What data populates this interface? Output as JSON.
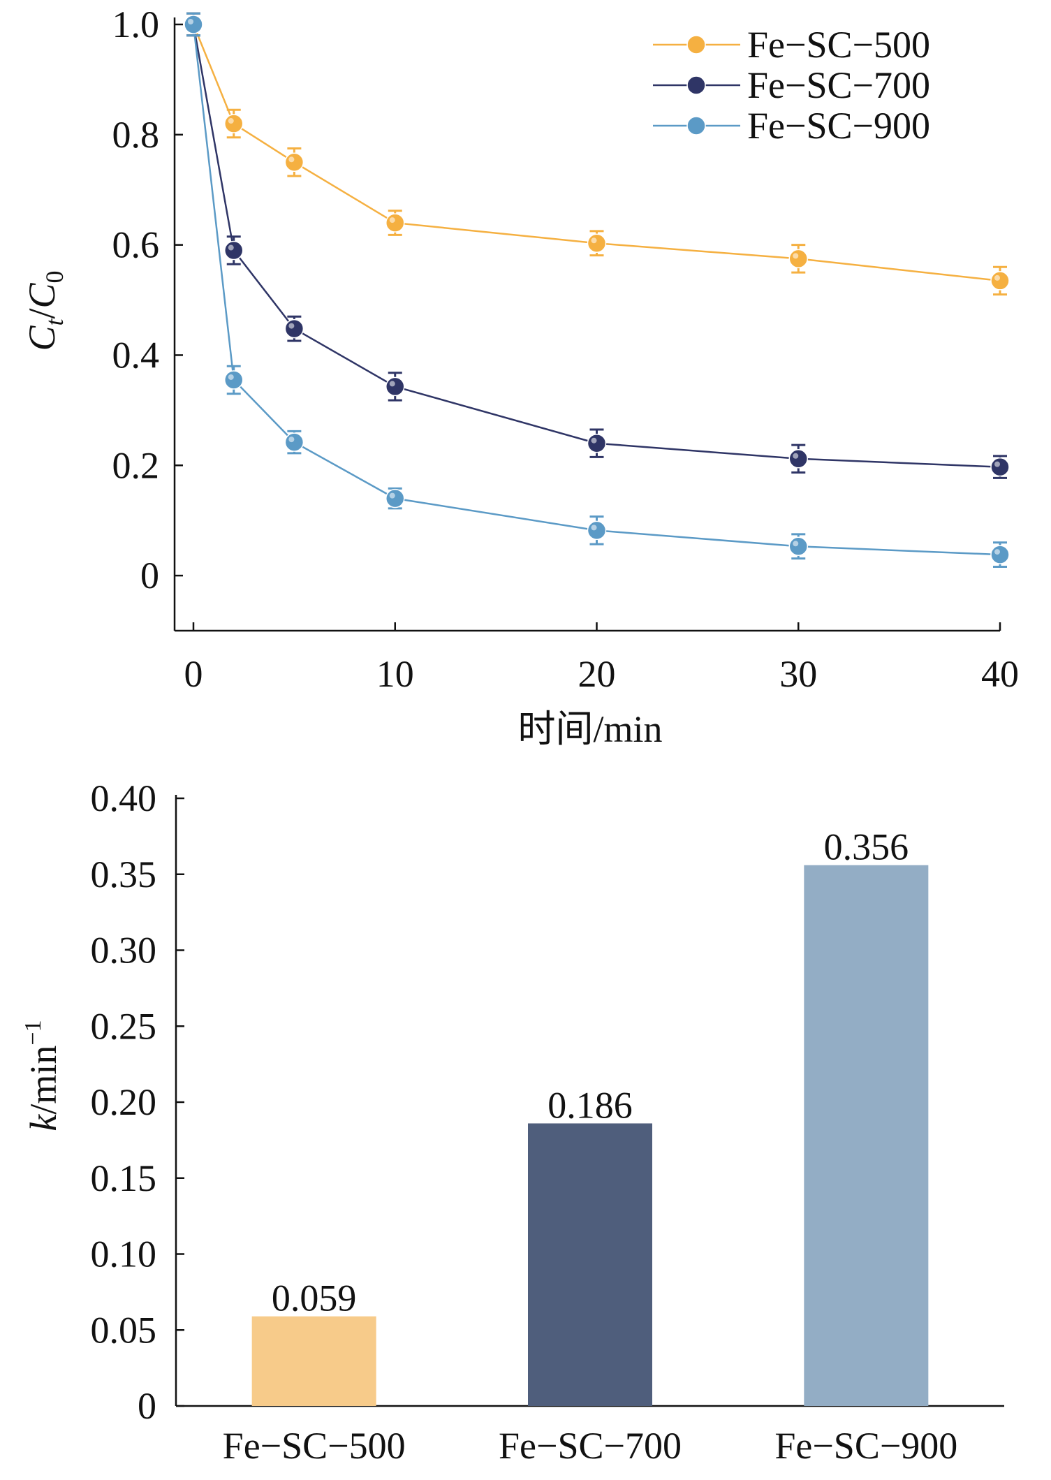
{
  "chart_data": [
    {
      "type": "line",
      "title": "",
      "xlabel": "时间/min",
      "ylabel": "Ct/C0",
      "ylabel_parts": {
        "c1": "C",
        "s1": "t",
        "slash": "/",
        "c2": "C",
        "s2": "0"
      },
      "xlim": [
        0,
        40
      ],
      "ylim": [
        -0.1,
        1.0
      ],
      "xticks": [
        0,
        10,
        20,
        30,
        40
      ],
      "xtick_labels": [
        "0",
        "10",
        "20",
        "30",
        "40"
      ],
      "yticks": [
        0,
        0.2,
        0.4,
        0.6,
        0.8,
        1.0
      ],
      "ytick_labels": [
        "0",
        "0.2",
        "0.4",
        "0.6",
        "0.8",
        "1.0"
      ],
      "grid": false,
      "legend_position": "top-right",
      "series": [
        {
          "name": "Fe−SC−500",
          "color": "#f5b041",
          "x": [
            0,
            2,
            5,
            10,
            20,
            30,
            40
          ],
          "y": [
            1.0,
            0.82,
            0.75,
            0.64,
            0.603,
            0.575,
            0.535
          ],
          "err": [
            0.02,
            0.025,
            0.025,
            0.022,
            0.022,
            0.025,
            0.025
          ]
        },
        {
          "name": "Fe−SC−700",
          "color": "#2f3566",
          "x": [
            0,
            2,
            5,
            10,
            20,
            30,
            40
          ],
          "y": [
            1.0,
            0.59,
            0.448,
            0.343,
            0.24,
            0.212,
            0.197
          ],
          "err": [
            0.02,
            0.025,
            0.022,
            0.025,
            0.025,
            0.025,
            0.02
          ]
        },
        {
          "name": "Fe−SC−900",
          "color": "#5b9ac6",
          "x": [
            0,
            2,
            5,
            10,
            20,
            30,
            40
          ],
          "y": [
            1.0,
            0.355,
            0.242,
            0.14,
            0.082,
            0.053,
            0.038
          ],
          "err": [
            0.02,
            0.025,
            0.02,
            0.018,
            0.025,
            0.022,
            0.022
          ]
        }
      ]
    },
    {
      "type": "bar",
      "title": "",
      "xlabel": "",
      "ylabel": "k/min−1",
      "ylabel_parts": {
        "k": "k",
        "rest": "/min",
        "exp": "−1"
      },
      "categories": [
        "Fe−SC−500",
        "Fe−SC−700",
        "Fe−SC−900"
      ],
      "values": [
        0.059,
        0.186,
        0.356
      ],
      "value_labels": [
        "0.059",
        "0.186",
        "0.356"
      ],
      "colors": [
        "#f7cb8a",
        "#4f5e7c",
        "#93adc5"
      ],
      "ylim": [
        0,
        0.4
      ],
      "yticks": [
        0,
        0.05,
        0.1,
        0.15,
        0.2,
        0.25,
        0.3,
        0.35,
        0.4
      ],
      "ytick_labels": [
        "0",
        "0.05",
        "0.10",
        "0.15",
        "0.20",
        "0.25",
        "0.30",
        "0.35",
        "0.40"
      ],
      "grid": false
    }
  ]
}
